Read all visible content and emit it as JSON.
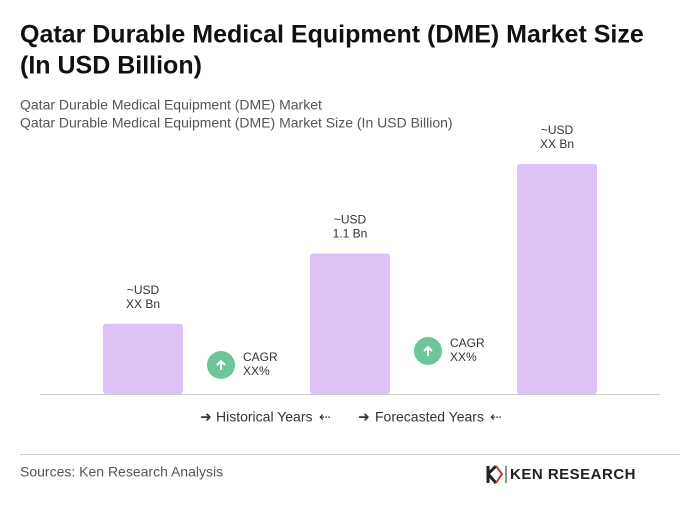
{
  "chart_data": {
    "type": "bar",
    "title": [
      "Qatar Durable Medical Equipment (DME) Market Size",
      "(In USD Billion)"
    ],
    "subtitle": [
      "Qatar Durable Medical Equipment (DME) Market",
      "Qatar Durable Medical Equipment (DME) Market Size (In USD Billion)"
    ],
    "values": [
      0.55,
      1.1,
      1.8
    ],
    "value_labels": [
      [
        "~USD",
        "XX Bn"
      ],
      [
        "~USD",
        "1.1 Bn"
      ],
      [
        "~USD",
        "XX Bn"
      ]
    ],
    "color": "#dcc2f6",
    "annotations": [
      [
        "CAGR",
        "XX%"
      ],
      [
        "CAGR",
        "XX%"
      ]
    ],
    "annotation_color": "#6cc59b",
    "legend": [
      "Historical Years",
      "Forecasted Years"
    ],
    "source": "Sources: Ken Research Analysis",
    "brand": "KEN RESEARCH"
  }
}
